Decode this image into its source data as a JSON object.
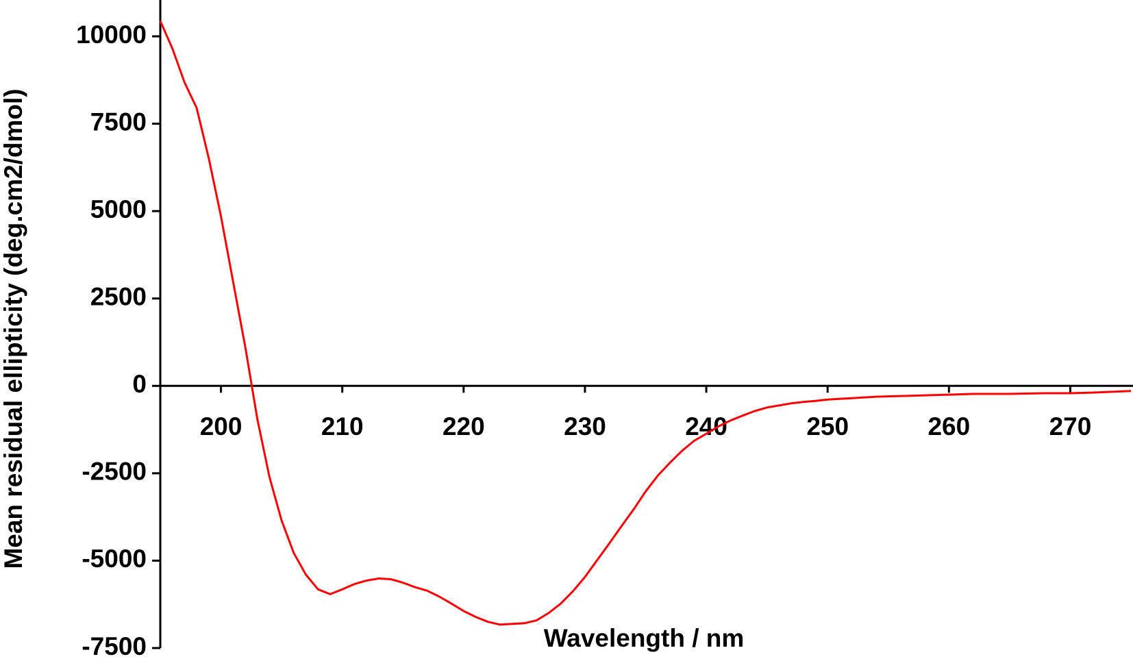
{
  "chart_data": {
    "type": "line",
    "x_label": "Wavelength / nm",
    "y_label": "Mean residual ellipticity (deg.cm2/dmol)",
    "x": [
      195,
      196,
      197,
      198,
      199,
      200,
      201,
      202,
      203,
      204,
      205,
      206,
      207,
      208,
      209,
      210,
      211,
      212,
      213,
      214,
      215,
      216,
      217,
      218,
      219,
      220,
      221,
      222,
      223,
      224,
      225,
      226,
      227,
      228,
      229,
      230,
      231,
      232,
      233,
      234,
      235,
      236,
      237,
      238,
      239,
      240,
      241,
      242,
      243,
      244,
      245,
      246,
      247,
      248,
      249,
      250,
      252,
      254,
      256,
      258,
      260,
      262,
      265,
      268,
      270,
      272,
      275
    ],
    "series": [
      {
        "color": "#ff0000",
        "values": [
          10440,
          9650,
          8680,
          7950,
          6500,
          4850,
          2980,
          1120,
          -950,
          -2610,
          -3850,
          -4780,
          -5400,
          -5820,
          -5960,
          -5820,
          -5670,
          -5570,
          -5510,
          -5530,
          -5630,
          -5760,
          -5860,
          -6030,
          -6230,
          -6440,
          -6610,
          -6750,
          -6830,
          -6810,
          -6790,
          -6710,
          -6500,
          -6230,
          -5880,
          -5470,
          -4990,
          -4510,
          -4020,
          -3540,
          -3020,
          -2570,
          -2200,
          -1860,
          -1570,
          -1370,
          -1160,
          -990,
          -850,
          -720,
          -620,
          -560,
          -500,
          -460,
          -430,
          -390,
          -350,
          -310,
          -290,
          -270,
          -250,
          -230,
          -230,
          -210,
          -210,
          -190,
          -145
        ]
      }
    ],
    "xlim": [
      195,
      275
    ],
    "ylim": [
      -7500,
      11000
    ],
    "xticks": [
      200,
      210,
      220,
      230,
      240,
      250,
      260,
      270
    ],
    "yticks": [
      -7500,
      -5000,
      -2500,
      0,
      2500,
      5000,
      7500,
      10000
    ]
  }
}
